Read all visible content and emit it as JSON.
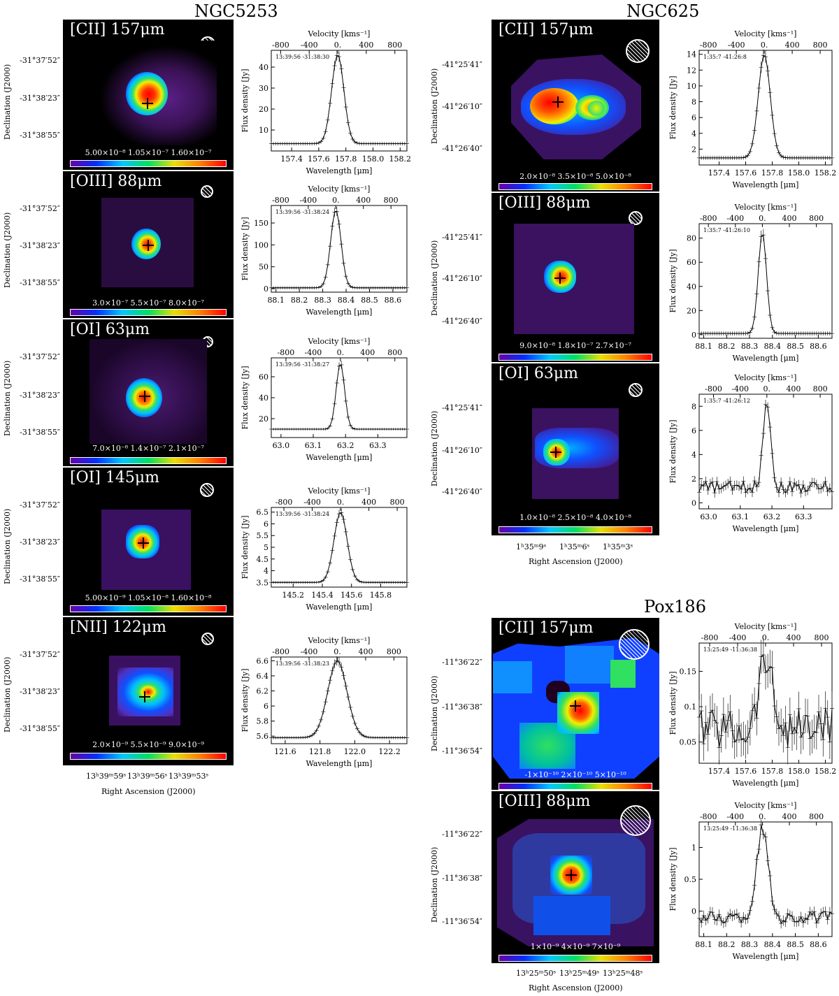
{
  "galaxies": {
    "ngc5253": {
      "name": "NGC5253"
    },
    "ngc625": {
      "name": "NGC625"
    },
    "pox186": {
      "name": "Pox186"
    }
  },
  "axis_labels": {
    "declination": "Declination (J2000)",
    "right_ascension": "Right Ascension (J2000)",
    "velocity": "Velocity [kms⁻¹]",
    "flux": "Flux density [Jy]",
    "wavelength": "Wavelength [μm]"
  },
  "ngc5253": {
    "dec_ticks": [
      "-31°37′52″",
      "-31°38′23″",
      "-31°38′55″"
    ],
    "ra_ticks": [
      "13ʰ39ᵐ59ˢ",
      "13ʰ39ᵐ56ˢ",
      "13ʰ39ᵐ53ˢ"
    ],
    "maps": [
      {
        "line": "[CII] 157μm",
        "colorbar": "5.00×10⁻⁸ 1.05×10⁻⁷ 1.60×10⁻⁷"
      },
      {
        "line": "[OIII] 88μm",
        "colorbar": "3.0×10⁻⁷ 5.5×10⁻⁷ 8.0×10⁻⁷"
      },
      {
        "line": "[OI] 63μm",
        "colorbar": "7.0×10⁻⁸ 1.4×10⁻⁷ 2.1×10⁻⁷"
      },
      {
        "line": "[OI] 145μm",
        "colorbar": "5.00×10⁻⁹ 1.05×10⁻⁸ 1.60×10⁻⁸"
      },
      {
        "line": "[NII] 122μm",
        "colorbar": "2.0×10⁻⁹ 5.5×10⁻⁹ 9.0×10⁻⁹"
      }
    ]
  },
  "ngc625": {
    "dec_ticks": [
      "-41°25′41″",
      "-41°26′10″",
      "-41°26′40″"
    ],
    "ra_ticks": [
      "1ʰ35ᵐ9ˢ",
      "1ʰ35ᵐ6ˢ",
      "1ʰ35ᵐ3ˢ"
    ],
    "maps": [
      {
        "line": "[CII] 157μm",
        "colorbar": "2.0×10⁻⁸ 3.5×10⁻⁸ 5.0×10⁻⁸"
      },
      {
        "line": "[OIII] 88μm",
        "colorbar": "9.0×10⁻⁸ 1.8×10⁻⁷ 2.7×10⁻⁷"
      },
      {
        "line": "[OI] 63μm",
        "colorbar": "1.0×10⁻⁸ 2.5×10⁻⁸ 4.0×10⁻⁸"
      }
    ]
  },
  "pox186": {
    "dec_ticks": [
      "-11°36′22″",
      "-11°36′38″",
      "-11°36′54″"
    ],
    "ra_ticks": [
      "13ʰ25ᵐ50ˢ",
      "13ʰ25ᵐ49ˢ",
      "13ʰ25ᵐ48ˢ"
    ],
    "maps": [
      {
        "line": "[CII] 157μm",
        "colorbar": "-1×10⁻¹⁰ 2×10⁻¹⁰ 5×10⁻¹⁰"
      },
      {
        "line": "[OIII] 88μm",
        "colorbar": "1×10⁻⁹ 4×10⁻⁹ 7×10⁻⁹"
      }
    ]
  },
  "chart_data": [
    {
      "type": "line",
      "galaxy": "NGC5253",
      "line": "[CII] 157μm",
      "position": "13:39:56 -31:38:30",
      "xlim": [
        157.25,
        158.25
      ],
      "ylim": [
        0,
        48
      ],
      "yticks": [
        10,
        20,
        30,
        40
      ],
      "xticks": [
        157.4,
        157.6,
        157.8,
        158.0,
        158.2
      ],
      "vticks": [
        -800,
        -400,
        0,
        400,
        800
      ],
      "center": 157.74,
      "width": 0.045,
      "baseline": 3.5,
      "peak": 46
    },
    {
      "type": "line",
      "galaxy": "NGC5253",
      "line": "[OIII] 88μm",
      "position": "13:39:56 -31:38:24",
      "xlim": [
        88.08,
        88.66
      ],
      "ylim": [
        -8,
        190
      ],
      "yticks": [
        0,
        50,
        100,
        150
      ],
      "xticks": [
        88.1,
        88.2,
        88.3,
        88.4,
        88.5,
        88.6
      ],
      "vticks": [
        -800,
        -400,
        0,
        400,
        800
      ],
      "center": 88.356,
      "width": 0.022,
      "baseline": 2,
      "peak": 180
    },
    {
      "type": "line",
      "galaxy": "NGC5253",
      "line": "[OI] 63μm",
      "position": "13:39:56 -31:38:27",
      "xlim": [
        62.97,
        63.39
      ],
      "ylim": [
        2,
        78
      ],
      "yticks": [
        20,
        40,
        60
      ],
      "xticks": [
        63.0,
        63.1,
        63.2,
        63.3
      ],
      "vticks": [
        -800,
        -400,
        0,
        400,
        800
      ],
      "center": 63.184,
      "width": 0.013,
      "baseline": 10,
      "peak": 73
    },
    {
      "type": "line",
      "galaxy": "NGC5253",
      "line": "[OI] 145μm",
      "position": "13:39:56 -31:38:24",
      "xlim": [
        145.05,
        145.98
      ],
      "ylim": [
        3.3,
        6.7
      ],
      "yticks": [
        3.5,
        4.0,
        4.5,
        5.0,
        5.5,
        6.0,
        6.5
      ],
      "xticks": [
        145.2,
        145.4,
        145.6,
        145.8
      ],
      "vticks": [
        -800,
        -400,
        0,
        400,
        800
      ],
      "center": 145.525,
      "width": 0.045,
      "baseline": 3.5,
      "peak": 6.5
    },
    {
      "type": "line",
      "galaxy": "NGC5253",
      "line": "[NII] 122μm",
      "position": "13:39:56 -31:38:23",
      "xlim": [
        121.52,
        122.3
      ],
      "ylim": [
        5.5,
        6.65
      ],
      "yticks": [
        5.6,
        5.8,
        6.0,
        6.2,
        6.4,
        6.6
      ],
      "xticks": [
        121.6,
        121.8,
        122.0,
        122.2
      ],
      "vticks": [
        -800,
        -400,
        0,
        400,
        800
      ],
      "center": 121.9,
      "width": 0.055,
      "baseline": 5.58,
      "peak": 6.6
    },
    {
      "type": "line",
      "galaxy": "NGC625",
      "line": "[CII] 157μm",
      "position": "1:35:7 -41:26:8",
      "xlim": [
        157.25,
        158.25
      ],
      "ylim": [
        0,
        14.5
      ],
      "yticks": [
        2,
        4,
        6,
        8,
        10,
        12,
        14
      ],
      "xticks": [
        157.4,
        157.6,
        157.8,
        158.0,
        158.2
      ],
      "vticks": [
        -800,
        -400,
        0,
        400,
        800
      ],
      "center": 157.74,
      "width": 0.045,
      "baseline": 0.9,
      "peak": 14
    },
    {
      "type": "line",
      "galaxy": "NGC625",
      "line": "[OIII] 88μm",
      "position": "1:35:7 -41:26:10",
      "xlim": [
        88.08,
        88.66
      ],
      "ylim": [
        -3,
        92
      ],
      "yticks": [
        0,
        20,
        40,
        60,
        80
      ],
      "xticks": [
        88.1,
        88.2,
        88.3,
        88.4,
        88.5,
        88.6
      ],
      "vticks": [
        -800,
        -400,
        0,
        400,
        800
      ],
      "center": 88.356,
      "width": 0.018,
      "baseline": 1,
      "peak": 85
    },
    {
      "type": "line",
      "galaxy": "NGC625",
      "line": "[OI] 63μm",
      "position": "1:35:7 -41:26:12",
      "xlim": [
        62.97,
        63.39
      ],
      "ylim": [
        -0.5,
        9
      ],
      "yticks": [
        0,
        2,
        4,
        6,
        8
      ],
      "xticks": [
        63.0,
        63.1,
        63.2,
        63.3
      ],
      "vticks": [
        -800,
        -400,
        0,
        400,
        800
      ],
      "center": 63.184,
      "width": 0.012,
      "baseline": 1.3,
      "peak": 8.6,
      "noise": 0.5
    },
    {
      "type": "line",
      "galaxy": "Pox186",
      "line": "[CII] 157μm",
      "position": "13:25:49 -11:36:38",
      "xlim": [
        157.25,
        158.25
      ],
      "ylim": [
        0.02,
        0.19
      ],
      "yticks": [
        0.05,
        0.1,
        0.15
      ],
      "xticks": [
        157.4,
        157.6,
        157.8,
        158.0,
        158.2
      ],
      "vticks": [
        -800,
        -400,
        0,
        400,
        800
      ],
      "center": 157.75,
      "width": 0.05,
      "baseline": 0.07,
      "peak": 0.17,
      "noise": 0.03
    },
    {
      "type": "line",
      "galaxy": "Pox186",
      "line": "[OIII] 88μm",
      "position": "13:25:49 -11:36:38",
      "xlim": [
        88.08,
        88.66
      ],
      "ylim": [
        -0.4,
        1.4
      ],
      "yticks": [
        0.0,
        0.5,
        1.0
      ],
      "xticks": [
        88.1,
        88.2,
        88.3,
        88.4,
        88.5,
        88.6
      ],
      "vticks": [
        -800,
        -400,
        0,
        400,
        800
      ],
      "center": 88.356,
      "width": 0.025,
      "baseline": -0.1,
      "peak": 1.3,
      "noise": 0.1
    }
  ]
}
